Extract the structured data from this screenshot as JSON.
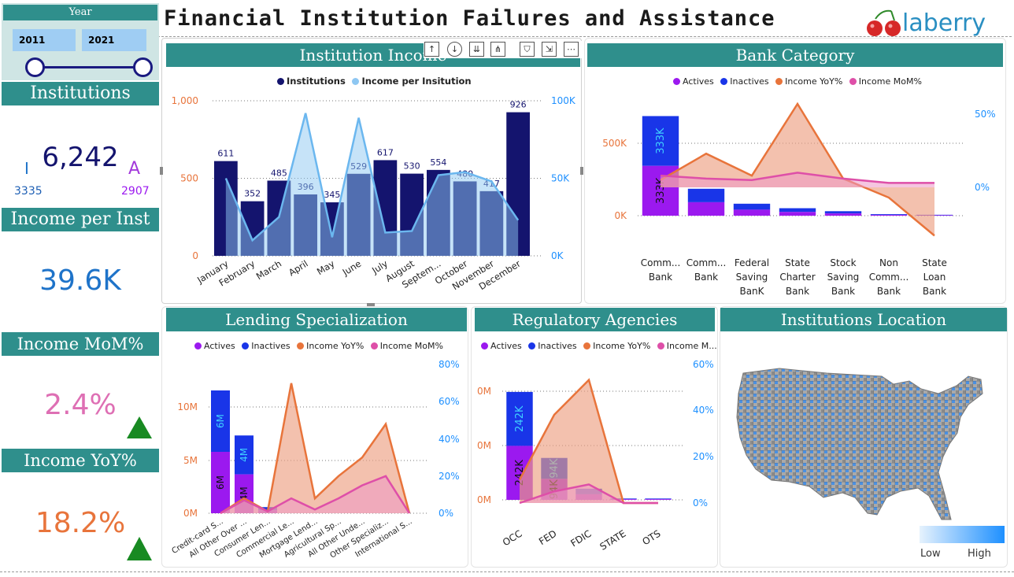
{
  "header": {
    "title": "Financial Institution Failures and Assistance",
    "logo_text": "laberry"
  },
  "slicer": {
    "label": "Year",
    "start": "2011",
    "end": "2021"
  },
  "kpis": {
    "institutions": {
      "label": "Institutions",
      "value": "6,242",
      "left_letter": "I",
      "left_value": "3335",
      "right_letter": "A",
      "right_value": "2907"
    },
    "income_per_inst": {
      "label": "Income per Inst",
      "value": "39.6K"
    },
    "income_mom": {
      "label": "Income MoM%",
      "value": "2.4%"
    },
    "income_yoy": {
      "label": "Income YoY%",
      "value": "18.2%"
    }
  },
  "visual_header": {
    "icons": [
      "arrow-up-icon",
      "drill-down-icon",
      "expand-down-icon",
      "fork-icon",
      "filter-icon",
      "focus-icon",
      "more-icon"
    ]
  },
  "map": {
    "title": "Institutions Location",
    "legend_low": "Low",
    "legend_high": "High"
  },
  "colors": {
    "teal": "#2f8f8c",
    "navy": "#14146e",
    "light_blue": "#8ec7f2",
    "purple": "#9b19ef",
    "blue": "#1935e8",
    "orange": "#e8743b",
    "pink": "#de4fa8",
    "right_axis": "#1e90ff",
    "left_axis": "#e8743b"
  },
  "chart_data": [
    {
      "id": "institution-income",
      "type": "bar",
      "title": "Institution Income",
      "legend": [
        "Institutions",
        "Income per Insitution"
      ],
      "categories": [
        "January",
        "February",
        "March",
        "April",
        "May",
        "June",
        "July",
        "August",
        "Septem...",
        "October",
        "November",
        "December"
      ],
      "series": [
        {
          "name": "Institutions",
          "values": [
            611,
            352,
            485,
            396,
            345,
            529,
            617,
            530,
            554,
            480,
            417,
            926
          ]
        },
        {
          "name": "Income per Insitution",
          "values": [
            50000,
            10000,
            25000,
            92000,
            12000,
            89000,
            15000,
            16000,
            52000,
            54000,
            48000,
            23000
          ]
        }
      ],
      "ylim": [
        0,
        1000
      ],
      "yticks": [
        "0",
        "500",
        "1,000"
      ],
      "y2lim": [
        0,
        100000
      ],
      "y2ticks": [
        "0K",
        "50K",
        "100K"
      ]
    },
    {
      "id": "bank-category",
      "type": "bar",
      "title": "Bank Category",
      "legend": [
        "Actives",
        "Inactives",
        "Income YoY%",
        "Income MoM%"
      ],
      "categories": [
        [
          "Comm...",
          "Bank"
        ],
        [
          "Comm...",
          "Bank"
        ],
        [
          "Federal",
          "Saving",
          "BanK"
        ],
        [
          "State",
          "Charter",
          "Bank"
        ],
        [
          "Stock",
          "Saving",
          "Bank"
        ],
        [
          "Non",
          "Comm...",
          "Bank"
        ],
        [
          "State",
          "Loan",
          "Bank"
        ]
      ],
      "series": [
        {
          "name": "Actives",
          "values": [
            333000,
            90000,
            40000,
            25000,
            15000,
            5000,
            3000
          ]
        },
        {
          "name": "Inactives",
          "values": [
            333000,
            90000,
            40000,
            25000,
            15000,
            5000,
            3000
          ]
        },
        {
          "name": "Income YoY%",
          "values": [
            5,
            23,
            8,
            57,
            6,
            -7,
            -33
          ]
        },
        {
          "name": "Income MoM%",
          "values": [
            8,
            6,
            5,
            10,
            6,
            3,
            3
          ]
        }
      ],
      "bar_labels": [
        "333K",
        "333K"
      ],
      "yticks": [
        "0K",
        "500K"
      ],
      "ylim": [
        0,
        800000
      ],
      "y2ticks": [
        "0%",
        "50%"
      ],
      "y2lim": [
        -20,
        70
      ]
    },
    {
      "id": "lending-specialization",
      "type": "bar",
      "title": "Lending Specialization",
      "legend": [
        "Actives",
        "Inactives",
        "Income YoY%",
        "Income MoM%"
      ],
      "categories": [
        "Credit-card S...",
        "All Other Over ...",
        "Consumer Len...",
        "Commercial Le...",
        "Mortgage Lend...",
        "Agricultural Sp...",
        "All Other Unde...",
        "Other Specializ...",
        "International S..."
      ],
      "series": [
        {
          "name": "Actives",
          "values": [
            6000000,
            3800000,
            300000,
            0,
            0,
            0,
            0,
            0,
            0
          ]
        },
        {
          "name": "Inactives",
          "values": [
            6000000,
            3800000,
            300000,
            0,
            0,
            0,
            0,
            0,
            0
          ]
        },
        {
          "name": "Income YoY%",
          "values": [
            0,
            8,
            1,
            70,
            8,
            20,
            30,
            48,
            0
          ]
        },
        {
          "name": "Income MoM%",
          "values": [
            0,
            7,
            1,
            8,
            2,
            8,
            15,
            20,
            0
          ]
        }
      ],
      "bar_labels": [
        "6M",
        "6M",
        "4M",
        "4M"
      ],
      "yticks": [
        "0M",
        "5M",
        "10M"
      ],
      "ylim": [
        0,
        14000000
      ],
      "y2ticks": [
        "0%",
        "20%",
        "40%",
        "60%",
        "80%"
      ],
      "y2lim": [
        0,
        80
      ]
    },
    {
      "id": "regulatory-agencies",
      "type": "bar",
      "title": "Regulatory Agencies",
      "legend": [
        "Actives",
        "Inactives",
        "Income YoY%",
        "Income M..."
      ],
      "categories": [
        "OCC",
        "FED",
        "FDIC",
        "STATE",
        "OTS"
      ],
      "series": [
        {
          "name": "Actives",
          "values": [
            242000,
            94000,
            25000,
            3000,
            3000
          ]
        },
        {
          "name": "Inactives",
          "values": [
            242000,
            94000,
            25000,
            3000,
            3000
          ]
        },
        {
          "name": "Income YoY%",
          "values": [
            10,
            38,
            53,
            0,
            0
          ]
        },
        {
          "name": "Income M...",
          "values": [
            0,
            5,
            8,
            0,
            0
          ]
        }
      ],
      "bar_labels": [
        "242K",
        "242K",
        "94K",
        "94K"
      ],
      "yticks": [
        "0M",
        "0M",
        "0M"
      ],
      "ylim": [
        0,
        600000
      ],
      "y2ticks": [
        "0%",
        "20%",
        "40%",
        "60%"
      ],
      "y2lim": [
        0,
        60
      ]
    }
  ]
}
